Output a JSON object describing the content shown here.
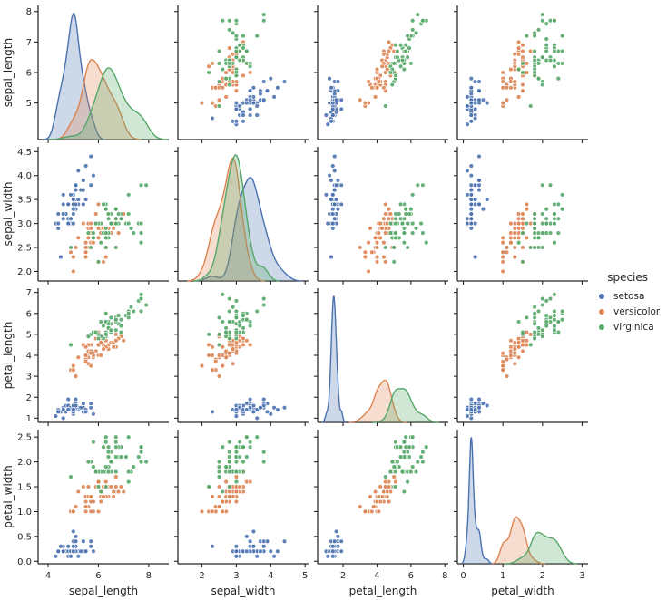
{
  "chart_data": {
    "type": "scatter",
    "subtype": "pairplot-scatter-matrix",
    "diag_kind": "kde",
    "title": "",
    "variables": [
      "sepal_length",
      "sepal_width",
      "petal_length",
      "petal_width"
    ],
    "legend": {
      "title": "species",
      "position": "center-right",
      "entries": [
        {
          "label": "setosa",
          "color": "#4C72B0"
        },
        {
          "label": "versicolor",
          "color": "#DD8452"
        },
        {
          "label": "virginica",
          "color": "#55A868"
        }
      ]
    },
    "species_colors": {
      "setosa": "#4C72B0",
      "versicolor": "#DD8452",
      "virginica": "#55A868"
    },
    "style": {
      "ink": "#262626",
      "background": "#ffffff",
      "marker_edge": "#ffffff",
      "grid": "off",
      "spines": "left-bottom-only"
    },
    "axes": {
      "sepal_length": {
        "col_range": [
          3.6,
          8.8
        ],
        "row_range": [
          3.8,
          8.2
        ],
        "x_ticks": [
          4,
          6,
          8
        ],
        "x_tick_labels": [
          "4",
          "6",
          "8"
        ],
        "y_ticks": [
          5,
          6,
          7,
          8
        ],
        "y_tick_labels": [
          "5",
          "6",
          "7",
          "8"
        ]
      },
      "sepal_width": {
        "col_range": [
          1.3,
          5.1
        ],
        "row_range": [
          1.8,
          4.6
        ],
        "x_ticks": [
          2,
          3,
          4,
          5
        ],
        "x_tick_labels": [
          "2",
          "3",
          "4",
          "5"
        ],
        "y_ticks": [
          2.0,
          2.5,
          3.0,
          3.5,
          4.0,
          4.5
        ],
        "y_tick_labels": [
          "2.0",
          "2.5",
          "3.0",
          "3.5",
          "4.0",
          "4.5"
        ]
      },
      "petal_length": {
        "col_range": [
          0.5,
          8.2
        ],
        "row_range": [
          0.8,
          7.2
        ],
        "x_ticks": [
          2,
          4,
          6,
          8
        ],
        "x_tick_labels": [
          "2",
          "4",
          "6",
          "8"
        ],
        "y_ticks": [
          1,
          2,
          3,
          4,
          5,
          6,
          7
        ],
        "y_tick_labels": [
          "1",
          "2",
          "3",
          "4",
          "5",
          "6",
          "7"
        ]
      },
      "petal_width": {
        "col_range": [
          -0.15,
          3.15
        ],
        "row_range": [
          -0.05,
          2.65
        ],
        "x_ticks": [
          0,
          1,
          2,
          3
        ],
        "x_tick_labels": [
          "0",
          "1",
          "2",
          "3"
        ],
        "y_ticks": [
          0.0,
          0.5,
          1.0,
          1.5,
          2.0,
          2.5
        ],
        "y_tick_labels": [
          "0.0",
          "0.5",
          "1.0",
          "1.5",
          "2.0",
          "2.5"
        ]
      }
    },
    "data": {
      "columns": [
        "sepal_length",
        "sepal_width",
        "petal_length",
        "petal_width"
      ],
      "points": {
        "setosa": [
          [
            5.1,
            3.5,
            1.4,
            0.2
          ],
          [
            4.9,
            3.0,
            1.4,
            0.2
          ],
          [
            4.7,
            3.2,
            1.3,
            0.2
          ],
          [
            4.6,
            3.1,
            1.5,
            0.2
          ],
          [
            5.0,
            3.6,
            1.4,
            0.2
          ],
          [
            5.4,
            3.9,
            1.7,
            0.4
          ],
          [
            4.6,
            3.4,
            1.4,
            0.3
          ],
          [
            5.0,
            3.4,
            1.5,
            0.2
          ],
          [
            4.4,
            2.9,
            1.4,
            0.2
          ],
          [
            4.9,
            3.1,
            1.5,
            0.1
          ],
          [
            5.4,
            3.7,
            1.5,
            0.2
          ],
          [
            4.8,
            3.4,
            1.6,
            0.2
          ],
          [
            4.8,
            3.0,
            1.4,
            0.1
          ],
          [
            4.3,
            3.0,
            1.1,
            0.1
          ],
          [
            5.8,
            4.0,
            1.2,
            0.2
          ],
          [
            5.7,
            4.4,
            1.5,
            0.4
          ],
          [
            5.4,
            3.9,
            1.3,
            0.4
          ],
          [
            5.1,
            3.5,
            1.4,
            0.3
          ],
          [
            5.7,
            3.8,
            1.7,
            0.3
          ],
          [
            5.1,
            3.8,
            1.5,
            0.3
          ],
          [
            5.4,
            3.4,
            1.7,
            0.2
          ],
          [
            5.1,
            3.7,
            1.5,
            0.4
          ],
          [
            4.6,
            3.6,
            1.0,
            0.2
          ],
          [
            5.1,
            3.3,
            1.7,
            0.5
          ],
          [
            4.8,
            3.4,
            1.9,
            0.2
          ],
          [
            5.0,
            3.0,
            1.6,
            0.2
          ],
          [
            5.0,
            3.4,
            1.6,
            0.4
          ],
          [
            5.2,
            3.5,
            1.5,
            0.2
          ],
          [
            5.2,
            3.4,
            1.4,
            0.2
          ],
          [
            4.7,
            3.2,
            1.6,
            0.2
          ],
          [
            4.8,
            3.1,
            1.6,
            0.2
          ],
          [
            5.4,
            3.4,
            1.5,
            0.4
          ],
          [
            5.2,
            4.1,
            1.5,
            0.1
          ],
          [
            5.5,
            4.2,
            1.4,
            0.2
          ],
          [
            4.9,
            3.1,
            1.5,
            0.2
          ],
          [
            5.0,
            3.2,
            1.2,
            0.2
          ],
          [
            5.5,
            3.5,
            1.3,
            0.2
          ],
          [
            4.9,
            3.6,
            1.4,
            0.1
          ],
          [
            4.4,
            3.0,
            1.3,
            0.2
          ],
          [
            5.1,
            3.4,
            1.5,
            0.2
          ],
          [
            5.0,
            3.5,
            1.3,
            0.3
          ],
          [
            4.5,
            2.3,
            1.3,
            0.3
          ],
          [
            4.4,
            3.2,
            1.3,
            0.2
          ],
          [
            5.0,
            3.5,
            1.6,
            0.6
          ],
          [
            5.1,
            3.8,
            1.9,
            0.4
          ],
          [
            4.8,
            3.0,
            1.4,
            0.3
          ],
          [
            5.1,
            3.8,
            1.6,
            0.2
          ],
          [
            4.6,
            3.2,
            1.4,
            0.2
          ],
          [
            5.3,
            3.7,
            1.5,
            0.2
          ],
          [
            5.0,
            3.3,
            1.4,
            0.2
          ]
        ],
        "versicolor": [
          [
            7.0,
            3.2,
            4.7,
            1.4
          ],
          [
            6.4,
            3.2,
            4.5,
            1.5
          ],
          [
            6.9,
            3.1,
            4.9,
            1.5
          ],
          [
            5.5,
            2.3,
            4.0,
            1.3
          ],
          [
            6.5,
            2.8,
            4.6,
            1.5
          ],
          [
            5.7,
            2.8,
            4.5,
            1.3
          ],
          [
            6.3,
            3.3,
            4.7,
            1.6
          ],
          [
            4.9,
            2.4,
            3.3,
            1.0
          ],
          [
            6.6,
            2.9,
            4.6,
            1.3
          ],
          [
            5.2,
            2.7,
            3.9,
            1.4
          ],
          [
            5.0,
            2.0,
            3.5,
            1.0
          ],
          [
            5.9,
            3.0,
            4.2,
            1.5
          ],
          [
            6.0,
            2.2,
            4.0,
            1.0
          ],
          [
            6.1,
            2.9,
            4.7,
            1.4
          ],
          [
            5.6,
            2.9,
            3.6,
            1.3
          ],
          [
            6.7,
            3.1,
            4.4,
            1.4
          ],
          [
            5.6,
            3.0,
            4.5,
            1.5
          ],
          [
            5.8,
            2.7,
            4.1,
            1.0
          ],
          [
            6.2,
            2.2,
            4.5,
            1.5
          ],
          [
            5.6,
            2.5,
            3.9,
            1.1
          ],
          [
            5.9,
            3.2,
            4.8,
            1.8
          ],
          [
            6.1,
            2.8,
            4.0,
            1.3
          ],
          [
            6.3,
            2.5,
            4.9,
            1.5
          ],
          [
            6.1,
            2.8,
            4.7,
            1.2
          ],
          [
            6.4,
            2.9,
            4.3,
            1.3
          ],
          [
            6.6,
            3.0,
            4.4,
            1.4
          ],
          [
            6.8,
            2.8,
            4.8,
            1.4
          ],
          [
            6.7,
            3.0,
            5.0,
            1.7
          ],
          [
            6.0,
            2.9,
            4.5,
            1.5
          ],
          [
            5.7,
            2.6,
            3.5,
            1.0
          ],
          [
            5.5,
            2.4,
            3.8,
            1.1
          ],
          [
            5.5,
            2.4,
            3.7,
            1.0
          ],
          [
            5.8,
            2.7,
            3.9,
            1.2
          ],
          [
            6.0,
            2.7,
            5.1,
            1.6
          ],
          [
            5.4,
            3.0,
            4.5,
            1.5
          ],
          [
            6.0,
            3.4,
            4.5,
            1.6
          ],
          [
            6.7,
            3.1,
            4.7,
            1.5
          ],
          [
            6.3,
            2.3,
            4.4,
            1.3
          ],
          [
            5.6,
            3.0,
            4.1,
            1.3
          ],
          [
            5.5,
            2.5,
            4.0,
            1.3
          ],
          [
            5.5,
            2.6,
            4.4,
            1.2
          ],
          [
            6.1,
            3.0,
            4.6,
            1.4
          ],
          [
            5.8,
            2.6,
            4.0,
            1.2
          ],
          [
            5.0,
            2.3,
            3.3,
            1.0
          ],
          [
            5.6,
            2.7,
            4.2,
            1.3
          ],
          [
            5.7,
            3.0,
            4.2,
            1.2
          ],
          [
            5.7,
            2.9,
            4.2,
            1.3
          ],
          [
            6.2,
            2.9,
            4.3,
            1.3
          ],
          [
            5.1,
            2.5,
            3.0,
            1.1
          ],
          [
            5.7,
            2.8,
            4.1,
            1.3
          ]
        ],
        "virginica": [
          [
            6.3,
            3.3,
            6.0,
            2.5
          ],
          [
            5.8,
            2.7,
            5.1,
            1.9
          ],
          [
            7.1,
            3.0,
            5.9,
            2.1
          ],
          [
            6.3,
            2.9,
            5.6,
            1.8
          ],
          [
            6.5,
            3.0,
            5.8,
            2.2
          ],
          [
            7.6,
            3.0,
            6.6,
            2.1
          ],
          [
            4.9,
            2.5,
            4.5,
            1.7
          ],
          [
            7.3,
            2.9,
            6.3,
            1.8
          ],
          [
            6.7,
            2.5,
            5.8,
            1.8
          ],
          [
            7.2,
            3.6,
            6.1,
            2.5
          ],
          [
            6.5,
            3.2,
            5.1,
            2.0
          ],
          [
            6.4,
            2.7,
            5.3,
            1.9
          ],
          [
            6.8,
            3.0,
            5.5,
            2.1
          ],
          [
            5.7,
            2.5,
            5.0,
            2.0
          ],
          [
            5.8,
            2.8,
            5.1,
            2.4
          ],
          [
            6.4,
            3.2,
            5.3,
            2.3
          ],
          [
            6.5,
            3.0,
            5.5,
            1.8
          ],
          [
            7.7,
            3.8,
            6.7,
            2.2
          ],
          [
            7.7,
            2.6,
            6.9,
            2.3
          ],
          [
            6.0,
            2.2,
            5.0,
            1.5
          ],
          [
            6.9,
            3.2,
            5.7,
            2.3
          ],
          [
            5.6,
            2.8,
            4.9,
            2.0
          ],
          [
            7.7,
            2.8,
            6.7,
            2.0
          ],
          [
            6.3,
            2.7,
            4.9,
            1.8
          ],
          [
            6.7,
            3.3,
            5.7,
            2.1
          ],
          [
            7.2,
            3.2,
            6.0,
            1.8
          ],
          [
            6.2,
            2.8,
            4.8,
            1.8
          ],
          [
            6.1,
            3.0,
            4.9,
            1.8
          ],
          [
            6.4,
            2.8,
            5.6,
            2.1
          ],
          [
            7.2,
            3.0,
            5.8,
            1.6
          ],
          [
            7.4,
            2.8,
            6.1,
            1.9
          ],
          [
            7.9,
            3.8,
            6.4,
            2.0
          ],
          [
            6.4,
            2.8,
            5.6,
            2.2
          ],
          [
            6.3,
            2.8,
            5.1,
            1.5
          ],
          [
            6.1,
            2.6,
            5.6,
            1.4
          ],
          [
            7.7,
            3.0,
            6.1,
            2.3
          ],
          [
            6.3,
            3.4,
            5.6,
            2.4
          ],
          [
            6.4,
            3.1,
            5.5,
            1.8
          ],
          [
            6.0,
            3.0,
            4.8,
            1.8
          ],
          [
            6.9,
            3.1,
            5.4,
            2.1
          ],
          [
            6.7,
            3.1,
            5.6,
            2.4
          ],
          [
            6.9,
            3.1,
            5.1,
            2.3
          ],
          [
            5.8,
            2.7,
            5.1,
            1.9
          ],
          [
            6.8,
            3.2,
            5.9,
            2.3
          ],
          [
            6.7,
            3.3,
            5.7,
            2.5
          ],
          [
            6.7,
            3.0,
            5.2,
            2.3
          ],
          [
            6.3,
            2.5,
            5.0,
            1.9
          ],
          [
            6.5,
            3.0,
            5.2,
            2.0
          ],
          [
            6.2,
            3.4,
            5.4,
            2.3
          ],
          [
            5.9,
            3.0,
            5.1,
            1.8
          ]
        ]
      }
    }
  }
}
